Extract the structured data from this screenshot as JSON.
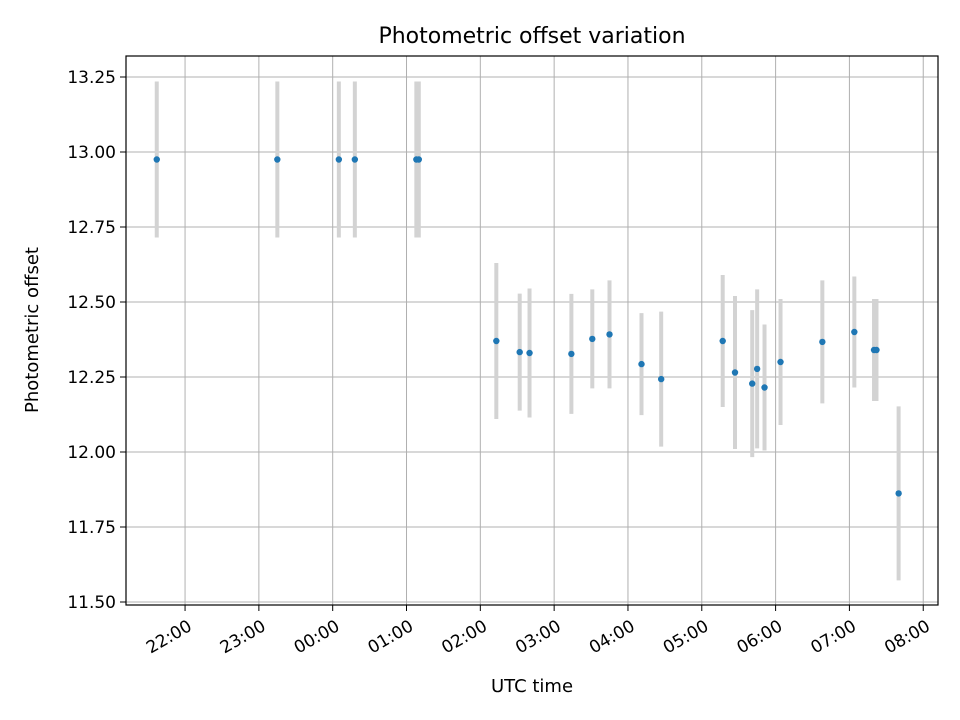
{
  "chart_data": {
    "type": "scatter",
    "title": "Photometric offset variation",
    "xlabel": "UTC time",
    "ylabel": "Photometric offset",
    "x_axis_type": "time",
    "xlim": [
      "21:12",
      "08:12"
    ],
    "ylim": [
      11.49,
      13.32
    ],
    "x_ticks": [
      "22:00",
      "23:00",
      "00:00",
      "01:00",
      "02:00",
      "03:00",
      "04:00",
      "05:00",
      "06:00",
      "07:00",
      "08:00"
    ],
    "y_ticks": [
      11.5,
      11.75,
      12.0,
      12.25,
      12.5,
      12.75,
      13.0,
      13.25
    ],
    "y_tick_labels": [
      "11.50",
      "11.75",
      "12.00",
      "12.25",
      "12.50",
      "12.75",
      "13.00",
      "13.25"
    ],
    "grid": true,
    "point_color": "#1f77b4",
    "errorbar_color": "#d3d3d3",
    "series": [
      {
        "points": [
          {
            "t": "21:37",
            "y": 12.975,
            "err": 0.26
          },
          {
            "t": "23:15",
            "y": 12.975,
            "err": 0.26
          },
          {
            "t": "00:05",
            "y": 12.975,
            "err": 0.26
          },
          {
            "t": "00:18",
            "y": 12.975,
            "err": 0.26
          },
          {
            "t": "01:08",
            "y": 12.975,
            "err": 0.26
          },
          {
            "t": "01:10",
            "y": 12.975,
            "err": 0.26
          },
          {
            "t": "02:13",
            "y": 12.37,
            "err": 0.26
          },
          {
            "t": "02:32",
            "y": 12.333,
            "err": 0.195
          },
          {
            "t": "02:40",
            "y": 12.33,
            "err": 0.215
          },
          {
            "t": "03:14",
            "y": 12.327,
            "err": 0.2
          },
          {
            "t": "03:31",
            "y": 12.377,
            "err": 0.165
          },
          {
            "t": "03:45",
            "y": 12.392,
            "err": 0.18
          },
          {
            "t": "04:11",
            "y": 12.293,
            "err": 0.17
          },
          {
            "t": "04:27",
            "y": 12.243,
            "err": 0.225
          },
          {
            "t": "05:17",
            "y": 12.37,
            "err": 0.22
          },
          {
            "t": "05:27",
            "y": 12.265,
            "err": 0.255
          },
          {
            "t": "05:41",
            "y": 12.228,
            "err": 0.245
          },
          {
            "t": "05:45",
            "y": 12.277,
            "err": 0.265
          },
          {
            "t": "05:51",
            "y": 12.215,
            "err": 0.21
          },
          {
            "t": "06:04",
            "y": 12.3,
            "err": 0.21
          },
          {
            "t": "06:38",
            "y": 12.367,
            "err": 0.205
          },
          {
            "t": "07:04",
            "y": 12.4,
            "err": 0.185
          },
          {
            "t": "07:20",
            "y": 12.34,
            "err": 0.17
          },
          {
            "t": "07:22",
            "y": 12.34,
            "err": 0.17
          },
          {
            "t": "07:40",
            "y": 11.862,
            "err": 0.29
          }
        ]
      }
    ]
  }
}
